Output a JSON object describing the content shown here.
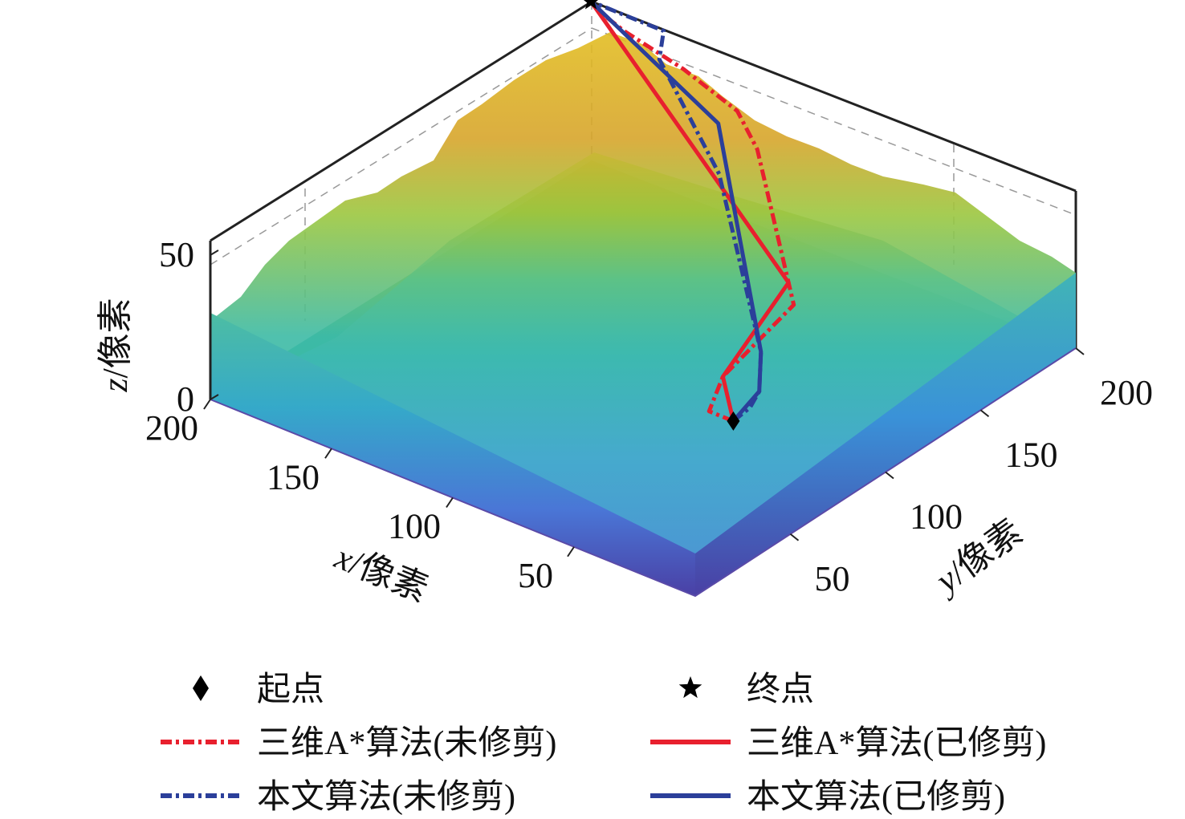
{
  "chart_data": {
    "type": "surface-3d-with-paths",
    "axes": {
      "x": {
        "label_var": "x",
        "label_unit": "/像素",
        "ticks": [
          50,
          100,
          150,
          200
        ],
        "range": [
          0,
          200
        ]
      },
      "y": {
        "label_var": "y",
        "label_unit": "/像素",
        "ticks": [
          50,
          100,
          150,
          200
        ],
        "range": [
          0,
          200
        ]
      },
      "z": {
        "label_var": "z",
        "label_unit": "/像素",
        "ticks": [
          0,
          50
        ],
        "range": [
          0,
          55
        ]
      }
    },
    "grid": true,
    "colormap": "parula",
    "legend": {
      "placement": "bottom",
      "columns": 2,
      "items": [
        {
          "key": "start",
          "label": "起点",
          "marker": "diamond",
          "color": "#000000"
        },
        {
          "key": "end",
          "label": "终点",
          "marker": "star",
          "color": "#000000"
        },
        {
          "key": "astar_unpruned",
          "label": "三维A*算法(未修剪)",
          "style": "dashdot",
          "color": "#e8202e"
        },
        {
          "key": "astar_pruned",
          "label": "三维A*算法(已修剪)",
          "style": "solid",
          "color": "#e8202e"
        },
        {
          "key": "ours_unpruned",
          "label": "本文算法(未修剪)",
          "style": "dashdot",
          "color": "#2b3f9a"
        },
        {
          "key": "ours_pruned",
          "label": "本文算法(已修剪)",
          "style": "solid",
          "color": "#2b3f9a"
        }
      ]
    },
    "points": {
      "start": {
        "x": 0,
        "y": 20,
        "z": 52
      },
      "end": {
        "x": 200,
        "y": 200,
        "z": 52
      }
    },
    "series": [
      {
        "key": "astar_unpruned",
        "style": "dashdot",
        "color": "#e8202e",
        "points": [
          [
            0,
            20,
            52
          ],
          [
            10,
            20,
            52
          ],
          [
            20,
            40,
            52
          ],
          [
            30,
            90,
            52
          ],
          [
            40,
            100,
            52
          ],
          [
            60,
            120,
            52
          ],
          [
            80,
            140,
            52
          ],
          [
            100,
            160,
            52
          ],
          [
            120,
            175,
            52
          ],
          [
            150,
            185,
            52
          ],
          [
            180,
            192,
            52
          ],
          [
            195,
            197,
            52
          ],
          [
            200,
            200,
            52
          ]
        ]
      },
      {
        "key": "astar_pruned",
        "style": "solid",
        "color": "#e8202e",
        "points": [
          [
            0,
            20,
            52
          ],
          [
            20,
            40,
            52
          ],
          [
            40,
            100,
            52
          ],
          [
            200,
            200,
            52
          ]
        ]
      },
      {
        "key": "ours_unpruned",
        "style": "dashdot",
        "color": "#2b3f9a",
        "points": [
          [
            0,
            20,
            52
          ],
          [
            1,
            30,
            52
          ],
          [
            5,
            40,
            52
          ],
          [
            20,
            60,
            52
          ],
          [
            50,
            90,
            52
          ],
          [
            100,
            140,
            52
          ],
          [
            160,
            185,
            52
          ],
          [
            170,
            200,
            52
          ],
          [
            200,
            200,
            52
          ]
        ]
      },
      {
        "key": "ours_pruned",
        "style": "solid",
        "color": "#2b3f9a",
        "points": [
          [
            0,
            20,
            52
          ],
          [
            5,
            40,
            52
          ],
          [
            20,
            60,
            52
          ],
          [
            120,
            165,
            52
          ],
          [
            200,
            200,
            52
          ]
        ]
      }
    ]
  }
}
